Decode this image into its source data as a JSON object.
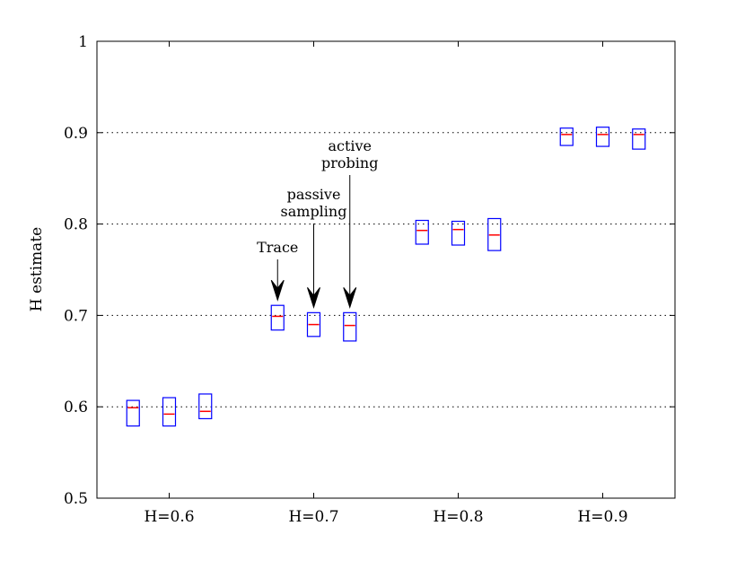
{
  "chart_data": {
    "type": "box",
    "ylabel": "H estimate",
    "xlabel": "",
    "ylim": [
      0.5,
      1.0
    ],
    "yticks": [
      "0.5",
      "0.6",
      "0.7",
      "0.8",
      "0.9",
      "1"
    ],
    "grid": "horizontal dotted",
    "categories": [
      "H=0.6",
      "H=0.7",
      "H=0.8",
      "H=0.9"
    ],
    "series": [
      {
        "group": "H=0.6",
        "x": 0.575,
        "q1": 0.579,
        "median": 0.599,
        "q3": 0.607
      },
      {
        "group": "H=0.6",
        "x": 0.6,
        "q1": 0.579,
        "median": 0.592,
        "q3": 0.61
      },
      {
        "group": "H=0.6",
        "x": 0.625,
        "q1": 0.587,
        "median": 0.595,
        "q3": 0.614
      },
      {
        "group": "H=0.7",
        "x": 0.675,
        "q1": 0.684,
        "median": 0.699,
        "q3": 0.711
      },
      {
        "group": "H=0.7",
        "x": 0.7,
        "q1": 0.677,
        "median": 0.69,
        "q3": 0.703
      },
      {
        "group": "H=0.7",
        "x": 0.725,
        "q1": 0.672,
        "median": 0.689,
        "q3": 0.703
      },
      {
        "group": "H=0.8",
        "x": 0.775,
        "q1": 0.778,
        "median": 0.793,
        "q3": 0.804
      },
      {
        "group": "H=0.8",
        "x": 0.8,
        "q1": 0.777,
        "median": 0.794,
        "q3": 0.803
      },
      {
        "group": "H=0.8",
        "x": 0.825,
        "q1": 0.771,
        "median": 0.788,
        "q3": 0.806
      },
      {
        "group": "H=0.9",
        "x": 0.875,
        "q1": 0.886,
        "median": 0.898,
        "q3": 0.905
      },
      {
        "group": "H=0.9",
        "x": 0.9,
        "q1": 0.885,
        "median": 0.898,
        "q3": 0.906
      },
      {
        "group": "H=0.9",
        "x": 0.925,
        "q1": 0.882,
        "median": 0.898,
        "q3": 0.904
      }
    ],
    "annotations": [
      {
        "lines": [
          "Trace"
        ],
        "points_to_x": 0.675
      },
      {
        "lines": [
          "passive",
          "sampling"
        ],
        "points_to_x": 0.7
      },
      {
        "lines": [
          "active",
          "probing"
        ],
        "points_to_x": 0.725
      }
    ],
    "colors": {
      "box": "#0000ff",
      "median": "#ff0000",
      "grid": "#000000",
      "axis": "#000000"
    }
  }
}
